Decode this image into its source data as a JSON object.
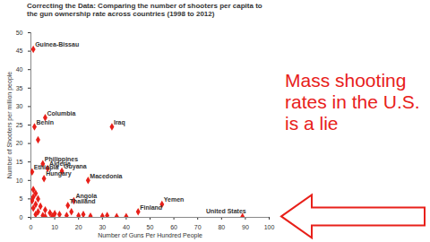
{
  "chart_data": {
    "type": "scatter",
    "title": "Correcting the Data: Comparing the number of shooters per capita to the gun ownership rate across countries (1998 to 2012)",
    "x_label": "Number of Guns Per Hundred People",
    "y_label": "Number of Shooters per million people",
    "annotation": "Mass shooting rates in the U.S. is a lie",
    "x": [
      1,
      6,
      1.5,
      34,
      5,
      7,
      0.5,
      13,
      5.5,
      24,
      18,
      15.5,
      55,
      45,
      88.8,
      3,
      1,
      2,
      1,
      3,
      0.5,
      2,
      4,
      1,
      6,
      3,
      8,
      10,
      12,
      2,
      5,
      15,
      20,
      25,
      30,
      32,
      36,
      40,
      6,
      9,
      17,
      22
    ],
    "values": [
      45.5,
      27,
      24.5,
      24.5,
      14.5,
      13.2,
      12.3,
      12.5,
      10.5,
      10,
      4.5,
      3.2,
      3.5,
      1.5,
      0.15,
      21,
      7.5,
      6.5,
      5.5,
      5,
      4.5,
      3.5,
      3,
      2.5,
      2,
      1.5,
      1.2,
      1,
      0.8,
      0.8,
      0.5,
      0.5,
      0.4,
      0.3,
      0.3,
      0.5,
      0.2,
      0.2,
      0.2,
      0.3,
      1.5,
      0.8
    ],
    "labels": [
      "Guinea-Bissau",
      "Columbia",
      "Benin",
      "Iraq",
      "Philippines",
      "Algeria",
      "Ethiopia",
      "Guyana",
      "Hungary",
      "Macedonia",
      "Angola",
      "Thailand",
      "Yemen",
      "Finland",
      "United States",
      null,
      null,
      null,
      null,
      null,
      null,
      null,
      null,
      null,
      null,
      null,
      null,
      null,
      null,
      null,
      null,
      null,
      null,
      null,
      null,
      null,
      null,
      null,
      null,
      null,
      null,
      null
    ],
    "color": "#e8201a",
    "marker": "diamond",
    "xlim": [
      0,
      100
    ],
    "xticks": [
      0,
      10,
      20,
      30,
      40,
      50,
      60,
      70,
      80,
      90,
      100
    ],
    "ylim": [
      0,
      50
    ],
    "yticks": [
      0,
      5,
      10,
      15,
      20,
      25,
      30,
      35,
      40,
      45,
      50
    ],
    "grid": false
  }
}
